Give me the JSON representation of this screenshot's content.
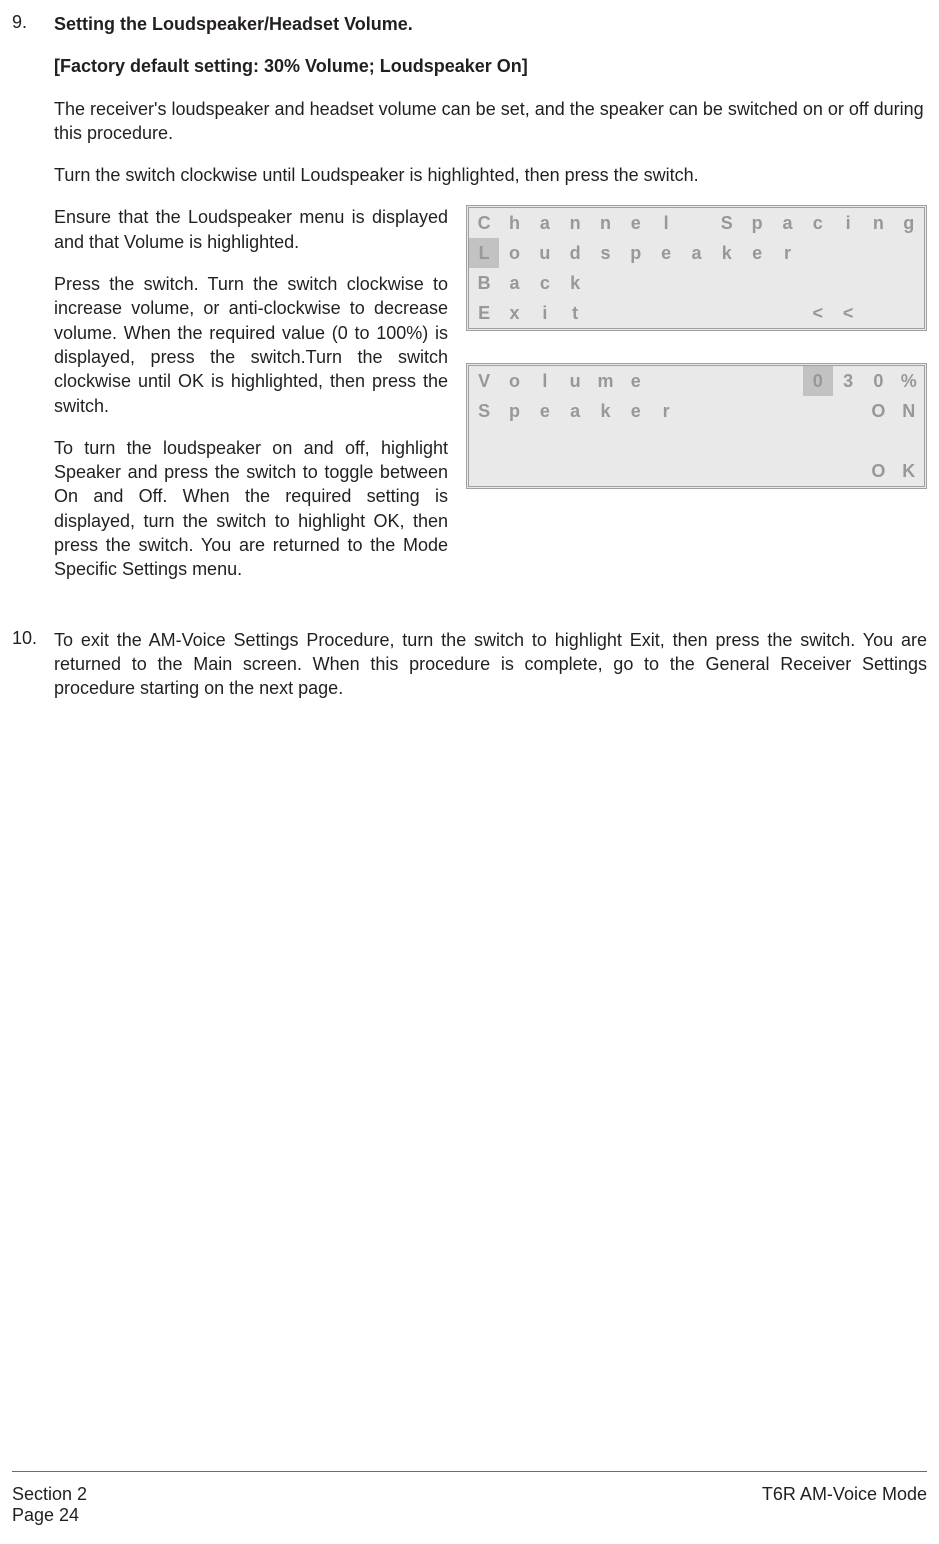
{
  "item9": {
    "number": "9.",
    "title": "Setting the Loudspeaker/Headset Volume.",
    "default_line": "[Factory default setting:  30% Volume; Loudspeaker On]",
    "intro": "The receiver's loudspeaker and headset volume can be set, and the speaker can be switched on or off during this procedure.",
    "turn": "Turn the switch clockwise until Loudspeaker is highlighted, then press the switch.",
    "left_p1": "Ensure that the Loudspeaker menu is displayed and that Volume is highlighted.",
    "left_p2": "Press the switch. Turn the switch clockwise to increase volume, or anti-clockwise to decrease volume. When the required value (0 to 100%) is displayed, press the switch.Turn the switch clockwise until OK is highlighted, then press the switch.",
    "left_p3": "To turn the loudspeaker on and off, highlight Speaker and press the switch to toggle between On and Off. When the required setting is displayed, turn the switch to highlight OK, then press the switch. You are returned to the Mode Specific Settings menu."
  },
  "lcd1": {
    "r1": [
      "C",
      "h",
      "a",
      "n",
      "n",
      "e",
      "l",
      "",
      "S",
      "p",
      "a",
      "c",
      "i",
      "n",
      "g"
    ],
    "r2": [
      "L",
      "o",
      "u",
      "d",
      "s",
      "p",
      "e",
      "a",
      "k",
      "e",
      "r",
      "",
      "",
      "",
      ""
    ],
    "r2_hl": [
      true,
      false,
      false,
      false,
      false,
      false,
      false,
      false,
      false,
      false,
      false,
      false,
      false,
      false,
      false
    ],
    "r3": [
      "B",
      "a",
      "c",
      "k",
      "",
      "",
      "",
      "",
      "",
      "",
      "",
      "",
      "",
      "",
      ""
    ],
    "r4": [
      "E",
      "x",
      "i",
      "t",
      "",
      "",
      "",
      "",
      "",
      "",
      "",
      "<",
      "<",
      "",
      ""
    ]
  },
  "lcd2": {
    "r1": [
      "V",
      "o",
      "l",
      "u",
      "m",
      "e",
      "",
      "",
      "",
      "",
      "",
      "0",
      "3",
      "0",
      "%"
    ],
    "r1_hl": [
      false,
      false,
      false,
      false,
      false,
      false,
      false,
      false,
      false,
      false,
      false,
      true,
      false,
      false,
      false
    ],
    "r2": [
      "S",
      "p",
      "e",
      "a",
      "k",
      "e",
      "r",
      "",
      "",
      "",
      "",
      "",
      "",
      "O",
      "N"
    ],
    "r3": [
      "",
      "",
      "",
      "",
      "",
      "",
      "",
      "",
      "",
      "",
      "",
      "",
      "",
      "",
      ""
    ],
    "r4": [
      "",
      "",
      "",
      "",
      "",
      "",
      "",
      "",
      "",
      "",
      "",
      "",
      "",
      "O",
      "K"
    ]
  },
  "item10": {
    "number": "10.",
    "text": "To exit the AM-Voice Settings Procedure, turn the switch to highlight Exit, then press the switch. You are returned to the Main screen. When this procedure is complete, go to the General Receiver Settings procedure starting on the next page."
  },
  "footer": {
    "left1": "Section 2",
    "left2": "Page 24",
    "right1": "T6R AM-Voice Mode"
  },
  "colors": {
    "text": "#231f20",
    "lcd_bg": "#e9e9e9",
    "lcd_text": "#989898",
    "lcd_hl": "#c2c2c2",
    "lcd_border": "#a0a0a0",
    "rule": "#6b6b6b"
  }
}
